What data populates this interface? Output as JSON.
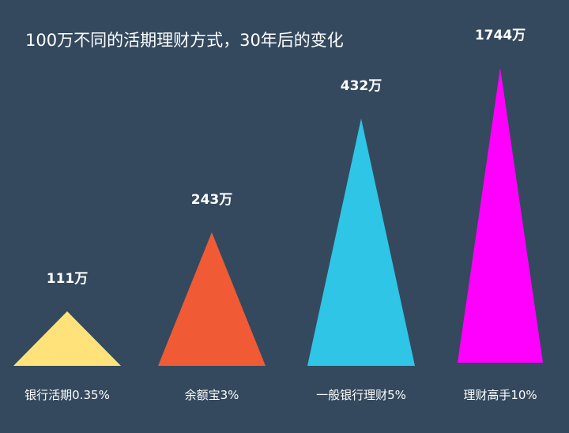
{
  "chart_data": {
    "type": "bar",
    "title": "100万不同的活期理财方式，30年后的变化",
    "categories": [
      "银行活期0.35%",
      "余额宝3%",
      "一般银行理财5%",
      "理财高手10%"
    ],
    "values": [
      111,
      243,
      432,
      1744
    ],
    "value_labels": [
      "111万",
      "243万",
      "432万",
      "1744万"
    ],
    "colors": [
      "#ffe27a",
      "#f05a35",
      "#2ec5e6",
      "#ff00ff"
    ],
    "grid": false,
    "legend": "none"
  }
}
